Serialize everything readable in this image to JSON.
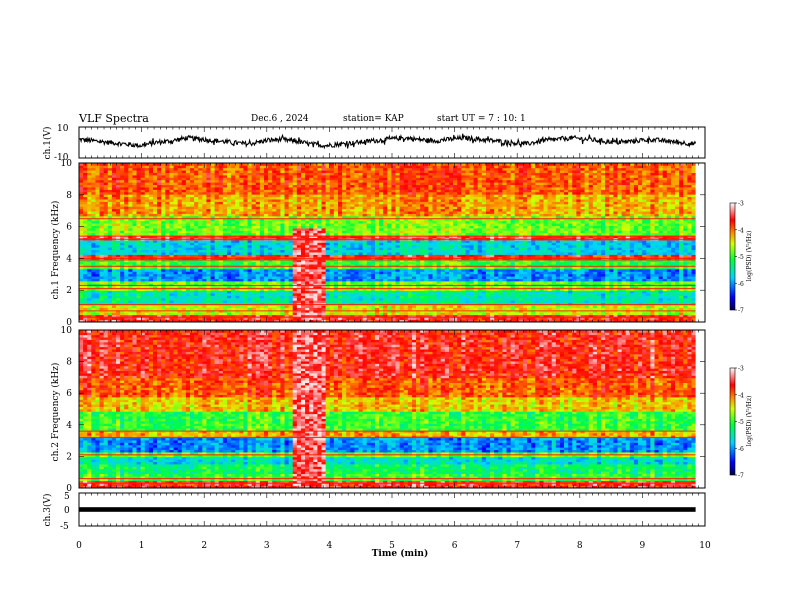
{
  "header": {
    "title": "VLF Spectra",
    "date": "Dec.6 , 2024",
    "station": "station= KAP",
    "start": "start UT = 7 : 10: 1"
  },
  "chart_data": [
    {
      "type": "line",
      "panel": "ch1-waveform",
      "ylabel": "ch.1(V)",
      "ylim": [
        -10,
        10
      ],
      "yticks": [
        "10",
        "-10"
      ],
      "xlim": [
        0,
        10
      ],
      "trend": [
        2,
        1,
        0,
        -1,
        -2,
        0,
        1,
        3,
        2,
        1,
        0,
        -1,
        1,
        2,
        1,
        -1,
        -2,
        -1,
        0,
        1,
        2,
        3,
        2,
        1,
        2,
        3,
        2,
        1,
        0,
        -1,
        1,
        2,
        3,
        2,
        1,
        0,
        1,
        2,
        1,
        0,
        -1
      ],
      "noise_amplitude": 1.5
    },
    {
      "type": "heatmap",
      "panel": "ch1-spectrogram",
      "ylabel": "ch.1 Frequency (kHz)",
      "ylim": [
        0,
        10
      ],
      "yticks": [
        "0",
        "2",
        "4",
        "6",
        "8",
        "10"
      ],
      "xlim": [
        0,
        10
      ],
      "data_end_min": 9.85,
      "bands": [
        {
          "from": 0,
          "to": 0.5,
          "level": -3.6
        },
        {
          "from": 0.5,
          "to": 1.0,
          "level": -4.5
        },
        {
          "from": 1.0,
          "to": 1.9,
          "level": -5.5
        },
        {
          "from": 1.9,
          "to": 2.6,
          "level": -4.8
        },
        {
          "from": 2.6,
          "to": 3.4,
          "level": -6.0
        },
        {
          "from": 3.4,
          "to": 3.9,
          "level": -5.0
        },
        {
          "from": 3.9,
          "to": 4.3,
          "level": -3.7
        },
        {
          "from": 4.3,
          "to": 5.1,
          "level": -5.7
        },
        {
          "from": 5.1,
          "to": 5.5,
          "level": -3.5
        },
        {
          "from": 5.5,
          "to": 6.6,
          "level": -4.8
        },
        {
          "from": 6.6,
          "to": 8.0,
          "level": -4.2
        },
        {
          "from": 8.0,
          "to": 10.0,
          "level": -3.9
        }
      ],
      "lines_khz": [
        0.3,
        0.7,
        1.1,
        2.1,
        2.3,
        3.5,
        3.9,
        4.0,
        5.2,
        5.4,
        6.5
      ],
      "disturbance": {
        "from_min": 3.42,
        "to_min": 3.95,
        "fmax_khz": 5.9,
        "level": -3.4
      },
      "colorbar": {
        "label": "log(PSD) (V²/Hz)",
        "range": [
          -7,
          -3
        ],
        "ticks": [
          "-3",
          "-4",
          "-5",
          "-6",
          "-7"
        ]
      }
    },
    {
      "type": "heatmap",
      "panel": "ch2-spectrogram",
      "ylabel": "ch.2 Frequency (kHz)",
      "ylim": [
        0,
        10
      ],
      "yticks": [
        "0",
        "2",
        "4",
        "6",
        "8",
        "10"
      ],
      "xlim": [
        0,
        10
      ],
      "data_end_min": 9.85,
      "bands": [
        {
          "from": 0,
          "to": 0.5,
          "level": -3.6
        },
        {
          "from": 0.5,
          "to": 0.9,
          "level": -5.0
        },
        {
          "from": 0.9,
          "to": 1.5,
          "level": -5.2
        },
        {
          "from": 1.5,
          "to": 1.9,
          "level": -5.6
        },
        {
          "from": 1.9,
          "to": 2.3,
          "level": -4.8
        },
        {
          "from": 2.3,
          "to": 3.2,
          "level": -6.0
        },
        {
          "from": 3.2,
          "to": 3.6,
          "level": -4.2
        },
        {
          "from": 3.6,
          "to": 4.8,
          "level": -5.0
        },
        {
          "from": 4.8,
          "to": 5.8,
          "level": -4.3
        },
        {
          "from": 5.8,
          "to": 7.0,
          "level": -3.9
        },
        {
          "from": 7.0,
          "to": 10.0,
          "level": -3.6
        }
      ],
      "lines_khz": [
        0.3,
        0.6,
        2.1,
        3.2,
        3.6
      ],
      "disturbance": {
        "from_min": 3.42,
        "to_min": 3.95,
        "fmax_khz": 10,
        "level": -3.4
      },
      "colorbar": {
        "label": "log(PSD) (V²/Hz)",
        "range": [
          -7,
          -3
        ],
        "ticks": [
          "-3",
          "-4",
          "-5",
          "-6",
          "-7"
        ]
      }
    },
    {
      "type": "line",
      "panel": "ch3-waveform",
      "ylabel": "ch.3(V)",
      "ylim": [
        -5,
        5
      ],
      "yticks": [
        "5",
        "0",
        "-5"
      ],
      "xlim": [
        0,
        10
      ],
      "trace": {
        "level": 0,
        "thickness": 0.7
      }
    }
  ],
  "x_axis": {
    "label": "Time (min)",
    "ticks": [
      "0",
      "1",
      "2",
      "3",
      "4",
      "5",
      "6",
      "7",
      "8",
      "9",
      "10"
    ]
  }
}
